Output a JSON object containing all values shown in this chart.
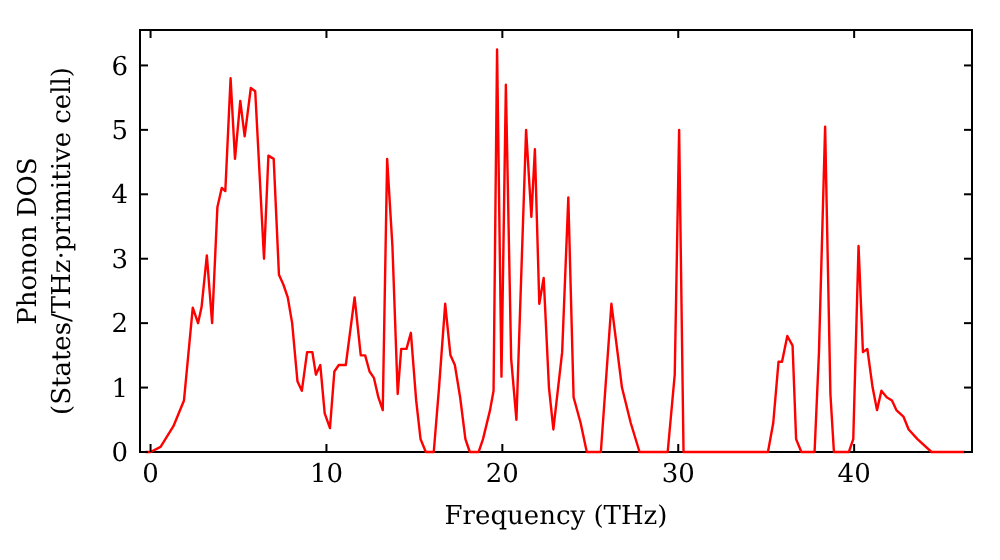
{
  "chart_data": {
    "type": "line",
    "xlabel": "Frequency (THz)",
    "ylabel": "Phonon DOS\n(States/THz·primitive cell)",
    "xlim": [
      -0.6,
      46.7
    ],
    "ylim": [
      0,
      6.55
    ],
    "xticks": [
      0,
      10,
      20,
      30,
      40
    ],
    "yticks": [
      0,
      1,
      2,
      3,
      4,
      5,
      6
    ],
    "grid": false,
    "marker": "none",
    "line_style": "solid",
    "series": [
      {
        "color": "#ff0000",
        "x": [
          -0.3,
          0,
          0.57,
          1.3,
          1.9,
          2.4,
          2.7,
          2.9,
          3.2,
          3.5,
          3.8,
          4.05,
          4.25,
          4.55,
          4.8,
          5.1,
          5.35,
          5.7,
          5.95,
          6.45,
          6.7,
          7.0,
          7.3,
          7.55,
          7.8,
          8.05,
          8.35,
          8.6,
          8.9,
          9.2,
          9.4,
          9.65,
          9.9,
          10.2,
          10.45,
          10.7,
          11.1,
          11.6,
          11.95,
          12.2,
          12.45,
          12.7,
          12.95,
          13.2,
          13.45,
          13.75,
          14.05,
          14.25,
          14.55,
          14.8,
          15.1,
          15.35,
          15.65,
          16.1,
          16.4,
          16.75,
          17.05,
          17.3,
          17.6,
          17.9,
          18.15,
          18.65,
          18.9,
          19.3,
          19.5,
          19.7,
          19.95,
          20.2,
          20.5,
          20.8,
          21.35,
          21.65,
          21.85,
          22.1,
          22.35,
          22.65,
          22.9,
          23.4,
          23.75,
          24.05,
          24.45,
          24.8,
          25.6,
          26.2,
          26.8,
          27.3,
          27.8,
          29.4,
          29.8,
          30.05,
          30.3,
          35.1,
          35.4,
          35.7,
          35.9,
          36.2,
          36.5,
          36.7,
          37.0,
          37.75,
          38.0,
          38.35,
          38.65,
          38.85,
          39.7,
          39.95,
          40.25,
          40.5,
          40.75,
          41.05,
          41.3,
          41.55,
          41.85,
          42.15,
          42.4,
          42.8,
          43.1,
          43.6,
          44.4,
          46.3
        ],
        "values": [
          0,
          0,
          0.08,
          0.4,
          0.8,
          2.24,
          2.0,
          2.25,
          3.05,
          2.0,
          3.8,
          4.1,
          4.05,
          5.8,
          4.55,
          5.45,
          4.9,
          5.65,
          5.6,
          3.0,
          4.6,
          4.55,
          2.75,
          2.6,
          2.4,
          2.0,
          1.1,
          0.95,
          1.55,
          1.55,
          1.2,
          1.35,
          0.6,
          0.37,
          1.25,
          1.35,
          1.35,
          2.4,
          1.5,
          1.5,
          1.25,
          1.15,
          0.85,
          0.65,
          4.55,
          3.2,
          0.9,
          1.6,
          1.6,
          1.85,
          0.8,
          0.2,
          0,
          0,
          1.0,
          2.3,
          1.5,
          1.35,
          0.85,
          0.2,
          0,
          0,
          0.2,
          0.65,
          0.95,
          6.25,
          1.17,
          5.7,
          1.45,
          0.5,
          5.0,
          3.65,
          4.7,
          2.3,
          2.7,
          1.0,
          0.35,
          1.55,
          3.95,
          0.85,
          0.45,
          0,
          0,
          2.3,
          1.0,
          0.45,
          0,
          0,
          1.2,
          5.0,
          0,
          0,
          0.45,
          1.4,
          1.4,
          1.8,
          1.65,
          0.2,
          0,
          0,
          1.55,
          5.05,
          0.9,
          0,
          0,
          0.2,
          3.2,
          1.55,
          1.6,
          1.0,
          0.65,
          0.95,
          0.85,
          0.8,
          0.65,
          0.55,
          0.35,
          0.2,
          0,
          0
        ]
      }
    ]
  }
}
